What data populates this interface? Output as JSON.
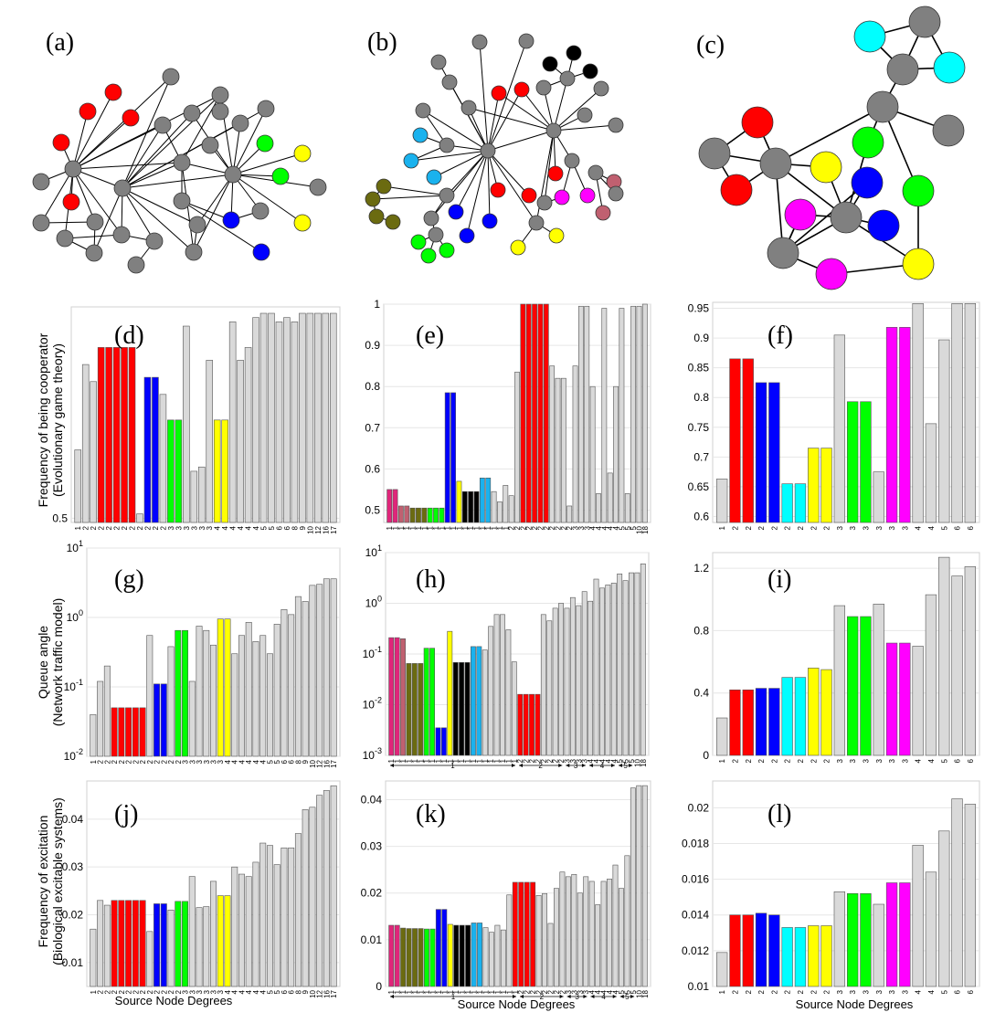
{
  "colors": {
    "gray": "#808080",
    "light": "#d9d9d9",
    "red": "#ff0000",
    "green": "#00ff00",
    "blue": "#0000ff",
    "yellow": "#ffff00",
    "black": "#000000",
    "cyan": "#00ffff",
    "skyblue": "#1ab2ee",
    "olive": "#6b6b10",
    "magenta": "#ff00ff",
    "pink": "#e0257a",
    "rose": "#c06070"
  },
  "networks": [
    {
      "label": "(a)"
    },
    {
      "label": "(b)"
    },
    {
      "label": "(c)"
    }
  ],
  "row_labels": {
    "d": "Frequency of being cooperator\n(Evolutionary game theory)",
    "g": "Queue angle\n(Network traffic model)",
    "j": "Frequency of excitation\n(Biological excitable systems)"
  },
  "x_axis_label": "Source Node Degrees",
  "chart_data": [
    {
      "panel": "(d)",
      "type": "bar",
      "ylim": [
        0.49,
        0.995
      ],
      "yticks": [
        0.5
      ],
      "categories": [
        "1",
        "2",
        "2",
        "2",
        "2",
        "2",
        "2",
        "2",
        "2",
        "2",
        "2",
        "2",
        "3",
        "3",
        "3",
        "3",
        "3",
        "3",
        "4",
        "4",
        "4",
        "4",
        "4",
        "4",
        "5",
        "5",
        "6",
        "6",
        "8",
        "9",
        "10",
        "12",
        "16",
        "17"
      ],
      "values": [
        0.66,
        0.86,
        0.82,
        0.9,
        0.9,
        0.9,
        0.9,
        0.9,
        0.51,
        0.83,
        0.83,
        0.79,
        0.73,
        0.73,
        0.95,
        0.61,
        0.62,
        0.87,
        0.73,
        0.73,
        0.96,
        0.87,
        0.9,
        0.97,
        0.98,
        0.98,
        0.96,
        0.97,
        0.96,
        0.98,
        0.98,
        0.98,
        0.98,
        0.98
      ],
      "colors": [
        "light",
        "light",
        "light",
        "red",
        "red",
        "red",
        "red",
        "red",
        "light",
        "blue",
        "blue",
        "light",
        "green",
        "green",
        "light",
        "light",
        "light",
        "light",
        "yellow",
        "yellow",
        "light",
        "light",
        "light",
        "light",
        "light",
        "light",
        "light",
        "light",
        "light",
        "light",
        "light",
        "light",
        "light",
        "light"
      ]
    },
    {
      "panel": "(e)",
      "type": "bar",
      "ylim": [
        0.47,
        1.0
      ],
      "yticks": [
        0.5,
        0.6,
        0.7,
        0.8,
        0.9,
        1
      ],
      "categories": [
        "1",
        "1",
        "1",
        "1",
        "1",
        "1",
        "1",
        "1",
        "1",
        "1",
        "1",
        "1",
        "1",
        "1",
        "1",
        "1",
        "1",
        "1",
        "1",
        "1",
        "1",
        "2",
        "2",
        "2",
        "2",
        "2",
        "2",
        "2",
        "2",
        "2",
        "2",
        "2",
        "3",
        "3",
        "3",
        "4",
        "4",
        "4",
        "4",
        "4",
        "5",
        "5",
        "5",
        "10",
        "18"
      ],
      "values": [
        0.55,
        0.55,
        0.51,
        0.51,
        0.505,
        0.505,
        0.505,
        0.505,
        0.505,
        0.505,
        0.785,
        0.785,
        0.57,
        0.545,
        0.545,
        0.545,
        0.578,
        0.578,
        0.545,
        0.52,
        0.56,
        0.535,
        0.835,
        1.0,
        1.0,
        1.0,
        1.0,
        1.0,
        0.85,
        0.82,
        0.82,
        0.51,
        0.85,
        0.995,
        0.995,
        0.8,
        0.54,
        0.99,
        0.59,
        0.8,
        0.99,
        0.54,
        0.995,
        0.995,
        1.0
      ],
      "colors": [
        "pink",
        "pink",
        "rose",
        "rose",
        "olive",
        "olive",
        "olive",
        "green",
        "green",
        "green",
        "blue",
        "blue",
        "yellow",
        "black",
        "black",
        "black",
        "skyblue",
        "skyblue",
        "light",
        "light",
        "light",
        "light",
        "light",
        "red",
        "red",
        "red",
        "red",
        "red",
        "light",
        "light",
        "light",
        "light",
        "light",
        "light",
        "light",
        "light",
        "light",
        "light",
        "light",
        "light",
        "light",
        "light",
        "light",
        "light",
        "light"
      ]
    },
    {
      "panel": "(f)",
      "type": "bar",
      "ylim": [
        0.59,
        0.96
      ],
      "yticks": [
        0.6,
        0.65,
        0.7,
        0.75,
        0.8,
        0.85,
        0.9,
        0.95
      ],
      "categories": [
        "1",
        "2",
        "2",
        "2",
        "2",
        "2",
        "2",
        "2",
        "2",
        "3",
        "3",
        "3",
        "3",
        "3",
        "3",
        "4",
        "4",
        "5",
        "6",
        "6"
      ],
      "values": [
        0.663,
        0.865,
        0.865,
        0.825,
        0.825,
        0.655,
        0.655,
        0.715,
        0.715,
        0.905,
        0.793,
        0.793,
        0.675,
        0.918,
        0.918,
        0.958,
        0.756,
        0.897,
        0.958,
        0.958
      ],
      "colors": [
        "light",
        "red",
        "red",
        "blue",
        "blue",
        "cyan",
        "cyan",
        "yellow",
        "yellow",
        "light",
        "green",
        "green",
        "light",
        "magenta",
        "magenta",
        "light",
        "light",
        "light",
        "light",
        "light"
      ]
    },
    {
      "panel": "(g)",
      "type": "bar",
      "scale": "log",
      "ylim": [
        0.01,
        10
      ],
      "yticks": [
        0.01,
        0.1,
        1,
        10
      ],
      "categories": [
        "1",
        "2",
        "2",
        "2",
        "2",
        "2",
        "2",
        "2",
        "2",
        "2",
        "2",
        "2",
        "2",
        "3",
        "3",
        "3",
        "3",
        "3",
        "3",
        "4",
        "4",
        "4",
        "4",
        "4",
        "4",
        "5",
        "5",
        "6",
        "6",
        "8",
        "9",
        "10",
        "12",
        "16",
        "17"
      ],
      "values": [
        0.04,
        0.12,
        0.2,
        0.05,
        0.05,
        0.05,
        0.05,
        0.05,
        0.55,
        0.11,
        0.11,
        0.38,
        0.65,
        0.65,
        0.12,
        0.75,
        0.65,
        0.4,
        0.95,
        0.95,
        0.3,
        0.55,
        0.85,
        0.45,
        0.55,
        0.3,
        0.8,
        1.3,
        1.1,
        2.0,
        1.7,
        2.9,
        3.0,
        3.6,
        3.6
      ],
      "colors": [
        "light",
        "light",
        "light",
        "red",
        "red",
        "red",
        "red",
        "red",
        "light",
        "blue",
        "blue",
        "light",
        "green",
        "green",
        "light",
        "light",
        "light",
        "light",
        "yellow",
        "yellow",
        "light",
        "light",
        "light",
        "light",
        "light",
        "light",
        "light",
        "light",
        "light",
        "light",
        "light",
        "light",
        "light",
        "light",
        "light"
      ]
    },
    {
      "panel": "(h)",
      "type": "bar",
      "scale": "log",
      "ylim": [
        0.001,
        10
      ],
      "yticks": [
        0.001,
        0.01,
        0.1,
        1,
        10
      ],
      "categories": [
        "1",
        "1",
        "1",
        "1",
        "1",
        "1",
        "1",
        "1",
        "1",
        "1",
        "1",
        "1",
        "1",
        "1",
        "1",
        "1",
        "1",
        "1",
        "1",
        "1",
        "1",
        "1",
        "2",
        "2",
        "2",
        "2",
        "2",
        "2",
        "2",
        "2",
        "3",
        "3",
        "3",
        "3",
        "4",
        "4",
        "4",
        "4",
        "4",
        "5",
        "5",
        "5",
        "10",
        "18"
      ],
      "values": [
        0.21,
        0.21,
        0.2,
        0.065,
        0.065,
        0.065,
        0.13,
        0.13,
        0.0035,
        0.0035,
        0.28,
        0.068,
        0.068,
        0.068,
        0.14,
        0.14,
        0.12,
        0.35,
        0.6,
        0.6,
        0.3,
        0.07,
        0.016,
        0.016,
        0.016,
        0.016,
        0.6,
        0.45,
        0.8,
        1.0,
        0.8,
        1.3,
        0.9,
        1.7,
        1.1,
        3.0,
        2.0,
        2.3,
        2.5,
        3.8,
        2.8,
        4.0,
        4.0,
        6.0
      ],
      "colors": [
        "pink",
        "pink",
        "rose",
        "olive",
        "olive",
        "olive",
        "green",
        "green",
        "blue",
        "blue",
        "yellow",
        "black",
        "black",
        "black",
        "skyblue",
        "skyblue",
        "light",
        "light",
        "light",
        "light",
        "light",
        "light",
        "red",
        "red",
        "red",
        "red",
        "light",
        "light",
        "light",
        "light",
        "light",
        "light",
        "light",
        "light",
        "light",
        "light",
        "light",
        "light",
        "light",
        "light",
        "light",
        "light",
        "light",
        "light"
      ]
    },
    {
      "panel": "(i)",
      "type": "bar",
      "ylim": [
        0,
        1.3
      ],
      "yticks": [
        0,
        0.4,
        0.8,
        1.2
      ],
      "categories": [
        "1",
        "2",
        "2",
        "2",
        "2",
        "2",
        "2",
        "2",
        "2",
        "3",
        "3",
        "3",
        "3",
        "3",
        "3",
        "4",
        "4",
        "5",
        "6",
        "6"
      ],
      "values": [
        0.24,
        0.42,
        0.42,
        0.43,
        0.43,
        0.5,
        0.5,
        0.56,
        0.55,
        0.96,
        0.89,
        0.89,
        0.97,
        0.72,
        0.72,
        0.7,
        1.03,
        1.27,
        1.15,
        1.21
      ],
      "colors": [
        "light",
        "red",
        "red",
        "blue",
        "blue",
        "cyan",
        "cyan",
        "yellow",
        "yellow",
        "light",
        "green",
        "green",
        "light",
        "magenta",
        "magenta",
        "light",
        "light",
        "light",
        "light",
        "light"
      ]
    },
    {
      "panel": "(j)",
      "type": "bar",
      "ylim": [
        0.005,
        0.048
      ],
      "yticks": [
        0.01,
        0.02,
        0.03,
        0.04
      ],
      "categories": [
        "1",
        "2",
        "2",
        "2",
        "2",
        "2",
        "2",
        "2",
        "2",
        "2",
        "2",
        "2",
        "2",
        "3",
        "3",
        "3",
        "3",
        "3",
        "3",
        "4",
        "4",
        "4",
        "4",
        "4",
        "4",
        "5",
        "5",
        "6",
        "6",
        "8",
        "9",
        "10",
        "12",
        "16",
        "17"
      ],
      "values": [
        0.017,
        0.023,
        0.022,
        0.023,
        0.023,
        0.023,
        0.023,
        0.023,
        0.0165,
        0.0223,
        0.0223,
        0.021,
        0.0228,
        0.0228,
        0.028,
        0.0215,
        0.0217,
        0.027,
        0.024,
        0.024,
        0.03,
        0.0285,
        0.028,
        0.031,
        0.035,
        0.0345,
        0.0305,
        0.034,
        0.034,
        0.037,
        0.042,
        0.0425,
        0.045,
        0.046,
        0.047
      ],
      "colors": [
        "light",
        "light",
        "light",
        "red",
        "red",
        "red",
        "red",
        "red",
        "light",
        "blue",
        "blue",
        "light",
        "green",
        "green",
        "light",
        "light",
        "light",
        "light",
        "yellow",
        "yellow",
        "light",
        "light",
        "light",
        "light",
        "light",
        "light",
        "light",
        "light",
        "light",
        "light",
        "light",
        "light",
        "light",
        "light",
        "light"
      ]
    },
    {
      "panel": "(k)",
      "type": "bar",
      "ylim": [
        0,
        0.044
      ],
      "yticks": [
        0,
        0.01,
        0.02,
        0.03,
        0.04
      ],
      "categories": [
        "1",
        "1",
        "1",
        "1",
        "1",
        "1",
        "1",
        "1",
        "1",
        "1",
        "1",
        "1",
        "1",
        "1",
        "1",
        "1",
        "1",
        "1",
        "1",
        "1",
        "1",
        "1",
        "2",
        "2",
        "2",
        "2",
        "2",
        "2",
        "2",
        "2",
        "3",
        "3",
        "3",
        "3",
        "4",
        "4",
        "4",
        "4",
        "4",
        "5",
        "5",
        "5",
        "10",
        "18"
      ],
      "values": [
        0.0131,
        0.0131,
        0.0125,
        0.0124,
        0.0124,
        0.0124,
        0.0123,
        0.0123,
        0.0165,
        0.0165,
        0.0133,
        0.0131,
        0.0131,
        0.0131,
        0.0136,
        0.0136,
        0.0126,
        0.0116,
        0.0131,
        0.0121,
        0.0196,
        0.0223,
        0.0223,
        0.0223,
        0.0223,
        0.0195,
        0.0199,
        0.0135,
        0.021,
        0.0245,
        0.0235,
        0.024,
        0.02,
        0.0235,
        0.0225,
        0.0175,
        0.0225,
        0.023,
        0.026,
        0.021,
        0.028,
        0.0425,
        0.043,
        0.043
      ],
      "colors": [
        "pink",
        "pink",
        "olive",
        "olive",
        "olive",
        "olive",
        "green",
        "green",
        "blue",
        "blue",
        "yellow",
        "black",
        "black",
        "black",
        "skyblue",
        "skyblue",
        "light",
        "light",
        "light",
        "light",
        "light",
        "red",
        "red",
        "red",
        "red",
        "light",
        "light",
        "light",
        "light",
        "light",
        "light",
        "light",
        "light",
        "light",
        "light",
        "light",
        "light",
        "light",
        "light",
        "light",
        "light",
        "light",
        "light",
        "light"
      ]
    },
    {
      "panel": "(l)",
      "type": "bar",
      "ylim": [
        0.01,
        0.0215
      ],
      "yticks": [
        0.01,
        0.012,
        0.014,
        0.016,
        0.018,
        0.02
      ],
      "categories": [
        "1",
        "2",
        "2",
        "2",
        "2",
        "2",
        "2",
        "2",
        "2",
        "3",
        "3",
        "3",
        "3",
        "3",
        "3",
        "4",
        "4",
        "5",
        "6",
        "6"
      ],
      "values": [
        0.0119,
        0.014,
        0.014,
        0.0141,
        0.014,
        0.0133,
        0.0133,
        0.0134,
        0.0134,
        0.0153,
        0.0152,
        0.0152,
        0.0146,
        0.0158,
        0.0158,
        0.0179,
        0.0164,
        0.0187,
        0.0205,
        0.0202
      ],
      "colors": [
        "light",
        "red",
        "red",
        "blue",
        "blue",
        "cyan",
        "cyan",
        "yellow",
        "yellow",
        "light",
        "green",
        "green",
        "light",
        "magenta",
        "magenta",
        "light",
        "light",
        "light",
        "light",
        "light"
      ]
    }
  ],
  "degree_groups": {
    "h": [
      {
        "label": "1"
      },
      {
        "label": "2"
      },
      {
        "label": "3"
      },
      {
        "label": "4"
      },
      {
        "label": "5"
      }
    ],
    "k": [
      {
        "label": "1"
      },
      {
        "label": "2"
      },
      {
        "label": "3"
      },
      {
        "label": "4"
      },
      {
        "label": "5"
      }
    ]
  }
}
